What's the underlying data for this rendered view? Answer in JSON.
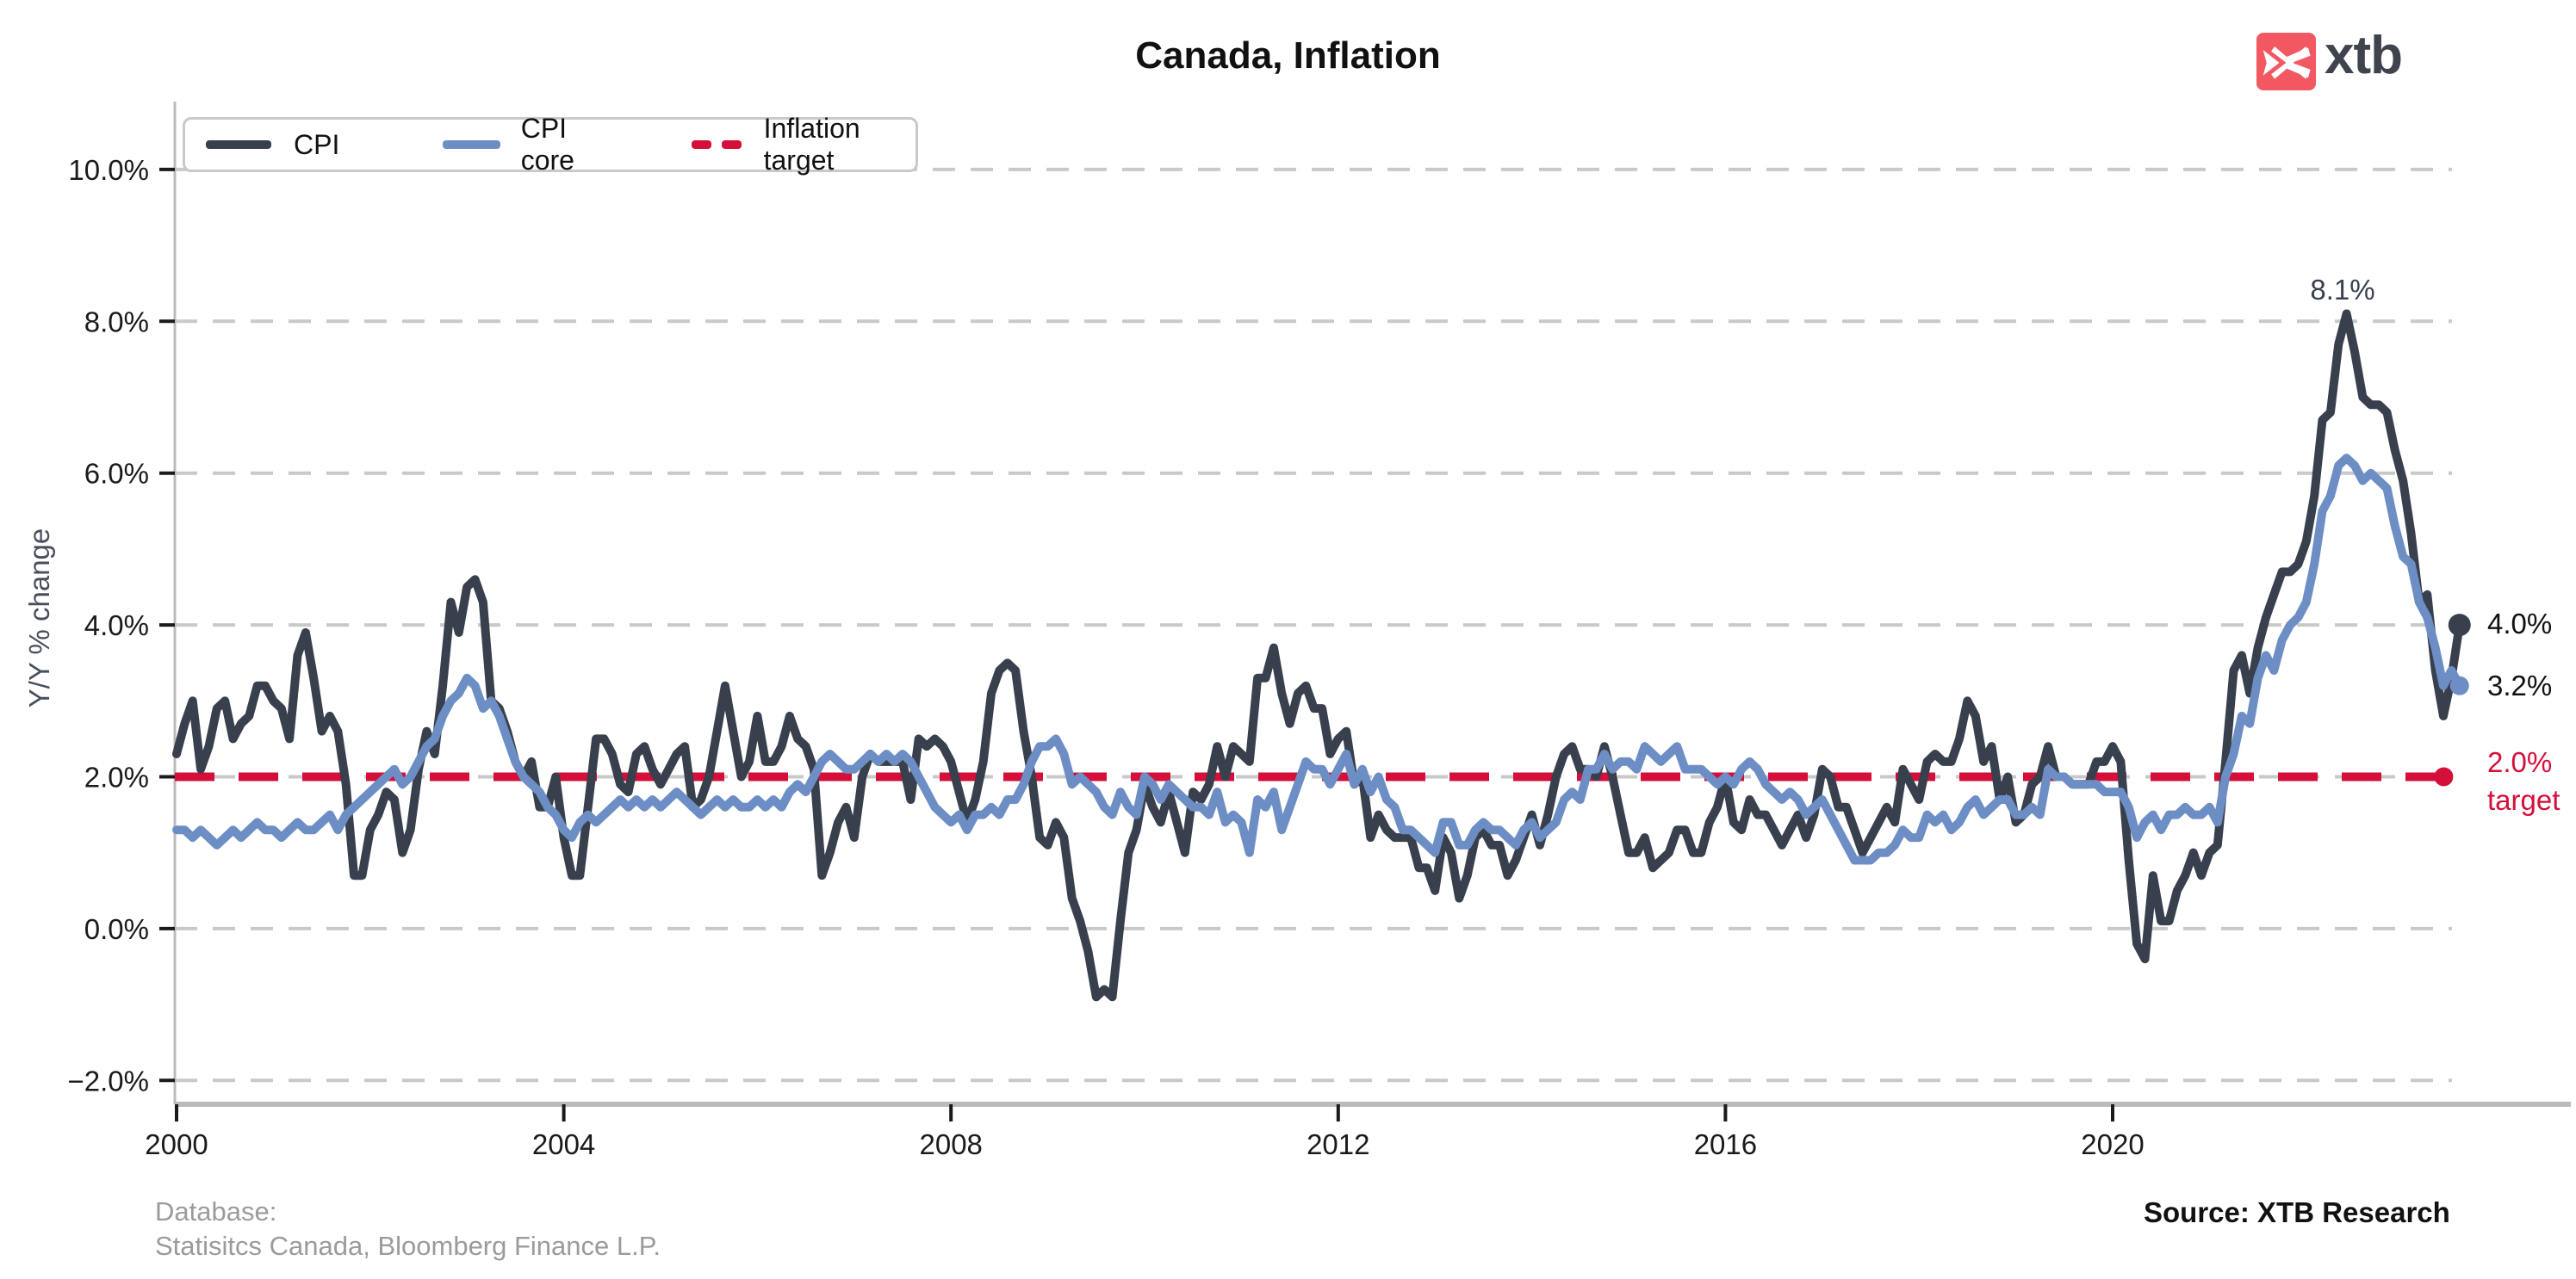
{
  "title": "Canada, Inflation",
  "logo": {
    "text": "xtb",
    "accent_color": "#f25862",
    "text_color": "#3e434d"
  },
  "legend": {
    "items": [
      {
        "label": "CPI",
        "color": "#39404d",
        "style": "solid"
      },
      {
        "label": "CPI core",
        "color": "#6d8ec5",
        "style": "solid"
      },
      {
        "label": "Inflation target",
        "color": "#d40f3a",
        "style": "dashed"
      }
    ]
  },
  "annotations": {
    "peak_label": "8.1%",
    "cpi_end_label": "4.0%",
    "core_end_label": "3.2%",
    "target_label_line1": "2.0%",
    "target_label_line2": "target"
  },
  "footer": {
    "database_line1": "Database:",
    "database_line2": "Statisitcs Canada, Bloomberg Finance L.P.",
    "source": "Source: XTB Research"
  },
  "chart_data": {
    "type": "line",
    "title": "Canada, Inflation",
    "ylabel": "Y/Y % change",
    "xlabel": "",
    "grid": "horizontal-dashed",
    "legend_position": "top-left",
    "ylim": [
      -2.4,
      10.9
    ],
    "x_start_year": 2000,
    "frequency": "monthly",
    "x_end": "2023-08",
    "y_ticks": {
      "values": [
        10,
        8,
        6,
        4,
        2,
        0,
        -2
      ],
      "labels": [
        "10.0%",
        "8.0%",
        "6.0%",
        "4.0%",
        "2.0%",
        "0.0%",
        "−2.0%"
      ]
    },
    "x_ticks": {
      "values": [
        2000,
        2004,
        2008,
        2012,
        2016,
        2020
      ],
      "labels": [
        "2000",
        "2004",
        "2008",
        "2012",
        "2016",
        "2020"
      ]
    },
    "target_line": {
      "value": 2.0,
      "color": "#d40f3a",
      "end_year": 2023.42
    },
    "series": [
      {
        "name": "CPI",
        "color": "#39404d",
        "end_dot": true,
        "end_value": 4.0,
        "values": [
          2.3,
          2.7,
          3.0,
          2.1,
          2.4,
          2.9,
          3.0,
          2.5,
          2.7,
          2.8,
          3.2,
          3.2,
          3.0,
          2.9,
          2.5,
          3.6,
          3.9,
          3.3,
          2.6,
          2.8,
          2.6,
          1.9,
          0.7,
          0.7,
          1.3,
          1.5,
          1.8,
          1.7,
          1.0,
          1.3,
          2.1,
          2.6,
          2.3,
          3.2,
          4.3,
          3.9,
          4.5,
          4.6,
          4.3,
          3.0,
          2.9,
          2.6,
          2.2,
          2.0,
          2.2,
          1.6,
          1.6,
          2.0,
          1.2,
          0.7,
          0.7,
          1.6,
          2.5,
          2.5,
          2.3,
          1.9,
          1.8,
          2.3,
          2.4,
          2.1,
          1.9,
          2.1,
          2.3,
          2.4,
          1.6,
          1.7,
          2.0,
          2.6,
          3.2,
          2.6,
          2.0,
          2.2,
          2.8,
          2.2,
          2.2,
          2.4,
          2.8,
          2.5,
          2.4,
          2.1,
          0.7,
          1.0,
          1.4,
          1.6,
          1.2,
          2.0,
          2.3,
          2.2,
          2.2,
          2.2,
          2.2,
          1.7,
          2.5,
          2.4,
          2.5,
          2.4,
          2.2,
          1.8,
          1.4,
          1.7,
          2.2,
          3.1,
          3.4,
          3.5,
          3.4,
          2.6,
          2.0,
          1.2,
          1.1,
          1.4,
          1.2,
          0.4,
          0.1,
          -0.3,
          -0.9,
          -0.8,
          -0.9,
          0.1,
          1.0,
          1.3,
          1.9,
          1.6,
          1.4,
          1.8,
          1.4,
          1.0,
          1.8,
          1.7,
          1.9,
          2.4,
          2.0,
          2.4,
          2.3,
          2.2,
          3.3,
          3.3,
          3.7,
          3.1,
          2.7,
          3.1,
          3.2,
          2.9,
          2.9,
          2.3,
          2.5,
          2.6,
          1.9,
          2.0,
          1.2,
          1.5,
          1.3,
          1.2,
          1.2,
          1.2,
          0.8,
          0.8,
          0.5,
          1.2,
          1.0,
          0.4,
          0.7,
          1.2,
          1.3,
          1.1,
          1.1,
          0.7,
          0.9,
          1.2,
          1.5,
          1.1,
          1.5,
          2.0,
          2.3,
          2.4,
          2.1,
          2.1,
          2.0,
          2.4,
          2.0,
          1.5,
          1.0,
          1.0,
          1.2,
          0.8,
          0.9,
          1.0,
          1.3,
          1.3,
          1.0,
          1.0,
          1.4,
          1.6,
          2.0,
          1.4,
          1.3,
          1.7,
          1.5,
          1.5,
          1.3,
          1.1,
          1.3,
          1.5,
          1.2,
          1.5,
          2.1,
          2.0,
          1.6,
          1.6,
          1.3,
          1.0,
          1.2,
          1.4,
          1.6,
          1.4,
          2.1,
          1.9,
          1.7,
          2.2,
          2.3,
          2.2,
          2.2,
          2.5,
          3.0,
          2.8,
          2.2,
          2.4,
          1.7,
          2.0,
          1.4,
          1.5,
          1.9,
          2.0,
          2.4,
          2.0,
          2.0,
          1.9,
          1.9,
          1.9,
          2.2,
          2.2,
          2.4,
          2.2,
          0.9,
          -0.2,
          -0.4,
          0.7,
          0.1,
          0.1,
          0.5,
          0.7,
          1.0,
          0.7,
          1.0,
          1.1,
          2.2,
          3.4,
          3.6,
          3.1,
          3.7,
          4.1,
          4.4,
          4.7,
          4.7,
          4.8,
          5.1,
          5.7,
          6.7,
          6.8,
          7.7,
          8.1,
          7.6,
          7.0,
          6.9,
          6.9,
          6.8,
          6.3,
          5.9,
          5.2,
          4.3,
          4.4,
          3.4,
          2.8,
          3.3,
          4.0
        ]
      },
      {
        "name": "CPI core",
        "color": "#6d8ec5",
        "end_dot": true,
        "end_value": 3.2,
        "values": [
          1.3,
          1.3,
          1.2,
          1.3,
          1.2,
          1.1,
          1.2,
          1.3,
          1.2,
          1.3,
          1.4,
          1.3,
          1.3,
          1.2,
          1.3,
          1.4,
          1.3,
          1.3,
          1.4,
          1.5,
          1.3,
          1.5,
          1.6,
          1.7,
          1.8,
          1.9,
          2.0,
          2.1,
          1.9,
          2.0,
          2.2,
          2.4,
          2.5,
          2.8,
          3.0,
          3.1,
          3.3,
          3.2,
          2.9,
          3.0,
          2.8,
          2.5,
          2.2,
          2.0,
          1.9,
          1.8,
          1.6,
          1.5,
          1.3,
          1.2,
          1.4,
          1.5,
          1.4,
          1.5,
          1.6,
          1.7,
          1.6,
          1.7,
          1.6,
          1.7,
          1.6,
          1.7,
          1.8,
          1.7,
          1.6,
          1.5,
          1.6,
          1.7,
          1.6,
          1.7,
          1.6,
          1.6,
          1.7,
          1.6,
          1.7,
          1.6,
          1.8,
          1.9,
          1.8,
          2.0,
          2.2,
          2.3,
          2.2,
          2.1,
          2.1,
          2.2,
          2.3,
          2.2,
          2.3,
          2.2,
          2.3,
          2.2,
          2.0,
          1.8,
          1.6,
          1.5,
          1.4,
          1.5,
          1.3,
          1.5,
          1.5,
          1.6,
          1.5,
          1.7,
          1.7,
          1.9,
          2.2,
          2.4,
          2.4,
          2.5,
          2.3,
          1.9,
          2.0,
          1.9,
          1.8,
          1.6,
          1.5,
          1.8,
          1.6,
          1.5,
          2.0,
          1.9,
          1.7,
          1.9,
          1.8,
          1.7,
          1.6,
          1.6,
          1.5,
          1.8,
          1.4,
          1.5,
          1.4,
          1.0,
          1.7,
          1.6,
          1.8,
          1.3,
          1.6,
          1.9,
          2.2,
          2.1,
          2.1,
          1.9,
          2.1,
          2.3,
          1.9,
          2.1,
          1.8,
          2.0,
          1.7,
          1.6,
          1.3,
          1.3,
          1.2,
          1.1,
          1.0,
          1.4,
          1.4,
          1.1,
          1.1,
          1.3,
          1.4,
          1.3,
          1.3,
          1.2,
          1.1,
          1.3,
          1.4,
          1.2,
          1.3,
          1.4,
          1.7,
          1.8,
          1.7,
          2.1,
          2.1,
          2.3,
          2.1,
          2.2,
          2.2,
          2.1,
          2.4,
          2.3,
          2.2,
          2.3,
          2.4,
          2.1,
          2.1,
          2.1,
          2.0,
          1.9,
          2.0,
          1.9,
          2.1,
          2.2,
          2.1,
          1.9,
          1.8,
          1.7,
          1.8,
          1.7,
          1.5,
          1.6,
          1.7,
          1.5,
          1.3,
          1.1,
          0.9,
          0.9,
          0.9,
          1.0,
          1.0,
          1.1,
          1.3,
          1.2,
          1.2,
          1.5,
          1.4,
          1.5,
          1.3,
          1.4,
          1.6,
          1.7,
          1.5,
          1.6,
          1.7,
          1.7,
          1.5,
          1.5,
          1.6,
          1.5,
          2.1,
          2.0,
          2.0,
          1.9,
          1.9,
          1.9,
          1.9,
          1.8,
          1.8,
          1.8,
          1.6,
          1.2,
          1.4,
          1.5,
          1.3,
          1.5,
          1.5,
          1.6,
          1.5,
          1.5,
          1.6,
          1.4,
          2.0,
          2.3,
          2.8,
          2.7,
          3.3,
          3.6,
          3.4,
          3.8,
          4.0,
          4.1,
          4.3,
          4.8,
          5.5,
          5.7,
          6.1,
          6.2,
          6.1,
          5.9,
          6.0,
          5.9,
          5.8,
          5.3,
          4.9,
          4.8,
          4.3,
          4.1,
          3.7,
          3.2,
          3.4,
          3.2
        ]
      }
    ],
    "peak_annotation": {
      "series": "CPI",
      "value": 8.1,
      "date": "2022-06"
    }
  }
}
